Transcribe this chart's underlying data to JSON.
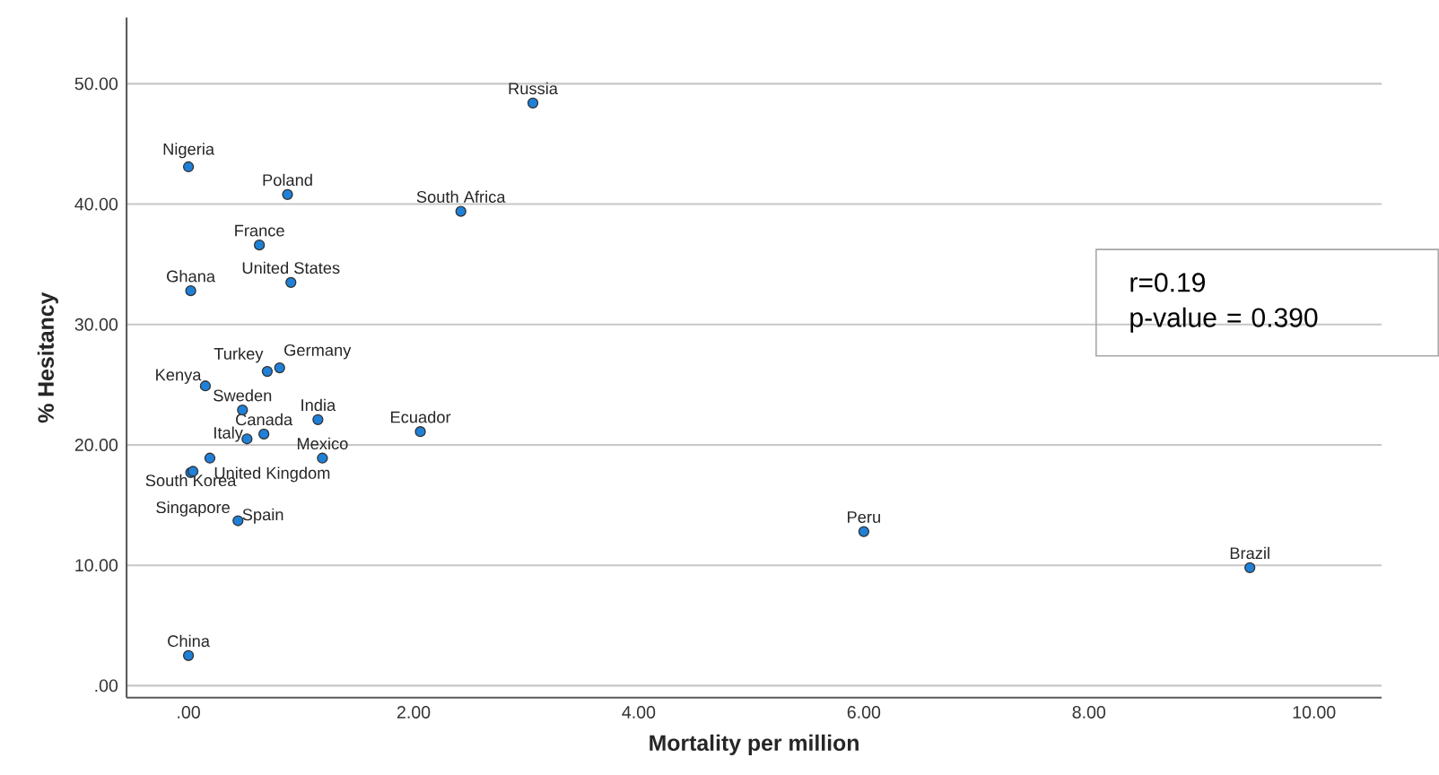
{
  "chart_data": {
    "type": "scatter",
    "xlabel": "Mortality per million",
    "ylabel": "% Hesitancy",
    "xlim": [
      -0.55,
      10.6
    ],
    "ylim": [
      -1,
      55.5
    ],
    "xticks": [
      {
        "value": 0,
        "label": ".00"
      },
      {
        "value": 2,
        "label": "2.00"
      },
      {
        "value": 4,
        "label": "4.00"
      },
      {
        "value": 6,
        "label": "6.00"
      },
      {
        "value": 8,
        "label": "8.00"
      },
      {
        "value": 10,
        "label": "10.00"
      }
    ],
    "yticks": [
      {
        "value": 0,
        "label": ".00"
      },
      {
        "value": 10,
        "label": "10.00"
      },
      {
        "value": 20,
        "label": "20.00"
      },
      {
        "value": 30,
        "label": "30.00"
      },
      {
        "value": 40,
        "label": "40.00"
      },
      {
        "value": 50,
        "label": "50.00"
      }
    ],
    "grid": "y",
    "marker": "circle",
    "series": [
      {
        "color": "#1f80d8",
        "x": [
          3.06,
          0.0,
          0.88,
          2.42,
          0.63,
          0.02,
          0.91,
          0.7,
          0.81,
          0.15,
          0.48,
          1.15,
          2.06,
          0.67,
          0.52,
          1.19,
          0.19,
          0.02,
          0.04,
          0.44,
          0.0,
          6.0,
          9.43
        ],
        "values": [
          48.4,
          43.1,
          40.8,
          39.4,
          36.6,
          32.8,
          33.5,
          26.1,
          26.4,
          24.9,
          22.9,
          22.1,
          21.1,
          20.9,
          20.5,
          18.9,
          18.9,
          17.7,
          17.8,
          13.7,
          2.5,
          12.8,
          9.8
        ]
      }
    ],
    "annotations": [
      {
        "text": "Russia",
        "x": 3.06,
        "y": 48.4
      },
      {
        "text": "Nigeria",
        "x": 0.0,
        "y": 43.1
      },
      {
        "text": "Poland",
        "x": 0.88,
        "y": 40.8
      },
      {
        "text": "South Africa",
        "x": 2.42,
        "y": 39.4
      },
      {
        "text": "France",
        "x": 0.63,
        "y": 36.6
      },
      {
        "text": "Ghana",
        "x": 0.02,
        "y": 32.8
      },
      {
        "text": "United States",
        "x": 0.91,
        "y": 33.5
      },
      {
        "text": "Turkey",
        "x": 0.7,
        "y": 26.1
      },
      {
        "text": "Germany",
        "x": 0.81,
        "y": 26.4
      },
      {
        "text": "Kenya",
        "x": 0.15,
        "y": 24.9
      },
      {
        "text": "Sweden",
        "x": 0.48,
        "y": 22.9
      },
      {
        "text": "India",
        "x": 1.15,
        "y": 22.1
      },
      {
        "text": "Ecuador",
        "x": 2.06,
        "y": 21.1
      },
      {
        "text": "Canada",
        "x": 0.67,
        "y": 20.9
      },
      {
        "text": "Italy",
        "x": 0.52,
        "y": 20.5
      },
      {
        "text": "Mexico",
        "x": 1.19,
        "y": 18.9
      },
      {
        "text": "United Kingdom",
        "x": 0.19,
        "y": 18.9
      },
      {
        "text": "South Korea",
        "x": 0.02,
        "y": 17.7
      },
      {
        "text": "Singapore",
        "x": 0.04,
        "y": 17.8
      },
      {
        "text": "Spain",
        "x": 0.44,
        "y": 13.7
      },
      {
        "text": "China",
        "x": 0.0,
        "y": 2.5
      },
      {
        "text": "Peru",
        "x": 6.0,
        "y": 12.8
      },
      {
        "text": "Brazil",
        "x": 9.43,
        "y": 9.8
      },
      "r=0.19",
      "p-value = 0.390"
    ]
  }
}
